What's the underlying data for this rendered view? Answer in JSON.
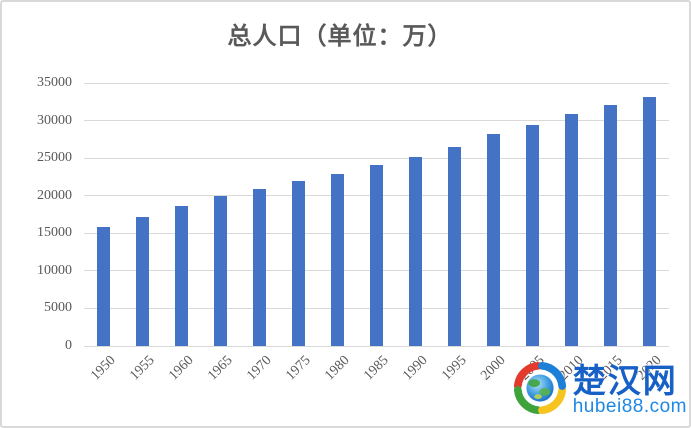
{
  "chart_data": {
    "type": "bar",
    "title": "总人口（单位：万）",
    "categories": [
      "1950",
      "1955",
      "1960",
      "1965",
      "1970",
      "1975",
      "1980",
      "1985",
      "1990",
      "1995",
      "2000",
      "2005",
      "2010",
      "2015",
      "2020"
    ],
    "values": [
      15880,
      17190,
      18670,
      19970,
      20950,
      21910,
      22950,
      24050,
      25210,
      26520,
      28170,
      29460,
      30900,
      32090,
      33100
    ],
    "xlabel": "",
    "ylabel": "",
    "ylim": [
      0,
      35000
    ],
    "yticks": [
      0,
      5000,
      10000,
      15000,
      20000,
      25000,
      30000,
      35000
    ],
    "grid": true,
    "legend_position": "none",
    "bar_color": "#4472c4",
    "gridline_color": "#d9d9d9",
    "text_color": "#595959",
    "background_color": "#ffffff",
    "border_color": "#d9d9d9",
    "x_tick_rotation_deg": 45
  },
  "watermark": {
    "site_name": "楚汉网",
    "site_domain": "hubei88.com",
    "site_name_color": "#1760c6",
    "site_domain_color": "#1e88e5",
    "icon": "globe-swirl-icon",
    "icon_colors": {
      "red": "#e23b2e",
      "green": "#3fa33c",
      "blue": "#1e7fd6",
      "yellow": "#f5c41e",
      "globe_blue": "#1565c0",
      "globe_light": "#7ec6f0",
      "globe_green": "#3fa33c"
    }
  }
}
